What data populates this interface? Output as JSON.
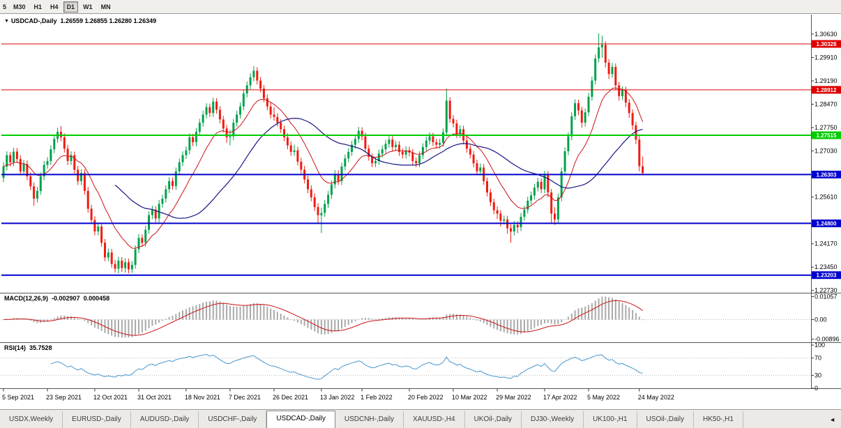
{
  "colors": {
    "bull": "#00a14b",
    "bear": "#ee1c12",
    "ma_fast": "#cc1111",
    "ma_slow": "#151580",
    "macd_hist": "#a9a9a9",
    "macd_signal": "#cc1111",
    "rsi_line": "#4696cf",
    "level_red": "#dd0000",
    "level_green": "#00cc00",
    "level_blue": "#0000cc",
    "pane_border": "#555555",
    "dotted_grid": "#b5b5b5",
    "axis_text": "#000000",
    "badge_text": "#ffffff"
  },
  "toolbar": {
    "timeframes": [
      {
        "label": "5",
        "partial": true
      },
      {
        "label": "M30"
      },
      {
        "label": "H1"
      },
      {
        "label": "H4"
      },
      {
        "label": "D1"
      },
      {
        "label": "W1"
      },
      {
        "label": "MN"
      }
    ],
    "active": "D1"
  },
  "chart": {
    "title_arrow": "▼",
    "symbol": "USDCAD-,Daily",
    "ohlc": "1.26559  1.26855  1.26280  1.26349"
  },
  "indicators": {
    "macd": {
      "label": "MACD(12,26,9)",
      "main_value": "-0.002907",
      "signal_value": "0.000458",
      "fast": 12,
      "slow": 26,
      "signal": 9,
      "axis_labels": [
        "0.01057",
        "0.00",
        "-0.00896"
      ],
      "axis_values": [
        0.01057,
        0,
        -0.00896
      ]
    },
    "rsi": {
      "label": "RSI(14)",
      "value": "35.7528",
      "period": 14,
      "axis_labels": [
        "100",
        "70",
        "30",
        "0"
      ],
      "axis_values": [
        100,
        70,
        30,
        0
      ],
      "level_lines": [
        70,
        30
      ]
    }
  },
  "chart_data": {
    "type": "candlestick",
    "symbol": "USDCAD",
    "timeframe": "Daily",
    "title": "USDCAD-,Daily",
    "last_ohlc": {
      "open": 1.26559,
      "high": 1.26855,
      "low": 1.2628,
      "close": 1.26349
    },
    "y_range": [
      1.2266,
      1.3123
    ],
    "y_axis_labels": [
      "1.30630",
      "1.29910",
      "1.29190",
      "1.28470",
      "1.27750",
      "1.27030",
      "1.25610",
      "1.24170",
      "1.23450",
      "1.22730"
    ],
    "levels": [
      {
        "price": 1.30328,
        "label": "1.30328",
        "color": "#dd0000",
        "width": 1
      },
      {
        "price": 1.28912,
        "label": "1.28912",
        "color": "#dd0000",
        "width": 1
      },
      {
        "price": 1.27515,
        "label": "1.27515",
        "color": "#00cc00",
        "width": 2
      },
      {
        "price": 1.26303,
        "label": "1.26303",
        "color": "#0000cc",
        "width": 2
      },
      {
        "price": 1.248,
        "label": "1.24800",
        "color": "#0000cc",
        "width": 2
      },
      {
        "price": 1.23203,
        "label": "1.23203",
        "color": "#0000cc",
        "width": 2
      }
    ],
    "moving_averages": [
      {
        "name": "fast",
        "method": "ema",
        "period": 13
      },
      {
        "name": "slow",
        "method": "sma",
        "period": 34
      }
    ],
    "x_axis_ticks": [
      {
        "label": "5 Sep 2021",
        "index": 0
      },
      {
        "label": "23 Sep 2021",
        "index": 13
      },
      {
        "label": "12 Oct 2021",
        "index": 27
      },
      {
        "label": "31 Oct 2021",
        "index": 40
      },
      {
        "label": "18 Nov 2021",
        "index": 54
      },
      {
        "label": "7 Dec 2021",
        "index": 67
      },
      {
        "label": "26 Dec 2021",
        "index": 80
      },
      {
        "label": "13 Jan 2022",
        "index": 94
      },
      {
        "label": "1 Feb 2022",
        "index": 106
      },
      {
        "label": "20 Feb 2022",
        "index": 120
      },
      {
        "label": "10 Mar 2022",
        "index": 133
      },
      {
        "label": "29 Mar 2022",
        "index": 146
      },
      {
        "label": "17 Apr 2022",
        "index": 160
      },
      {
        "label": "5 May 2022",
        "index": 173
      },
      {
        "label": "24 May 2022",
        "index": 188
      }
    ],
    "candles": [
      [
        1.262,
        1.2668,
        1.2607,
        1.2655
      ],
      [
        1.2655,
        1.2702,
        1.2643,
        1.269
      ],
      [
        1.269,
        1.27,
        1.2655,
        1.2668
      ],
      [
        1.2668,
        1.2713,
        1.2656,
        1.2701
      ],
      [
        1.2701,
        1.2712,
        1.2666,
        1.2678
      ],
      [
        1.2678,
        1.269,
        1.2628,
        1.264
      ],
      [
        1.264,
        1.2675,
        1.2628,
        1.2663
      ],
      [
        1.2663,
        1.2674,
        1.2613,
        1.2625
      ],
      [
        1.2625,
        1.2637,
        1.2582,
        1.2594
      ],
      [
        1.2594,
        1.2606,
        1.2534,
        1.2556
      ],
      [
        1.2556,
        1.2592,
        1.2544,
        1.258
      ],
      [
        1.258,
        1.2637,
        1.2568,
        1.2625
      ],
      [
        1.2625,
        1.2672,
        1.2613,
        1.266
      ],
      [
        1.266,
        1.2684,
        1.2648,
        1.2672
      ],
      [
        1.2672,
        1.272,
        1.266,
        1.2708
      ],
      [
        1.2708,
        1.2752,
        1.2696,
        1.274
      ],
      [
        1.274,
        1.2774,
        1.2728,
        1.2762
      ],
      [
        1.2762,
        1.278,
        1.2733,
        1.2745
      ],
      [
        1.2745,
        1.2757,
        1.2698,
        1.271
      ],
      [
        1.271,
        1.2722,
        1.266,
        1.2672
      ],
      [
        1.2672,
        1.2702,
        1.266,
        1.269
      ],
      [
        1.269,
        1.2701,
        1.2633,
        1.2645
      ],
      [
        1.2645,
        1.2657,
        1.2598,
        1.261
      ],
      [
        1.261,
        1.2647,
        1.2598,
        1.2635
      ],
      [
        1.2635,
        1.2646,
        1.2568,
        1.258
      ],
      [
        1.258,
        1.2592,
        1.2513,
        1.2525
      ],
      [
        1.2525,
        1.2537,
        1.2478,
        1.249
      ],
      [
        1.249,
        1.2502,
        1.2443,
        1.2455
      ],
      [
        1.2455,
        1.2482,
        1.2443,
        1.247
      ],
      [
        1.247,
        1.2481,
        1.2408,
        1.242
      ],
      [
        1.242,
        1.2432,
        1.2363,
        1.2375
      ],
      [
        1.2375,
        1.2402,
        1.2363,
        1.239
      ],
      [
        1.239,
        1.2401,
        1.2343,
        1.2355
      ],
      [
        1.2355,
        1.2367,
        1.2328,
        1.234
      ],
      [
        1.234,
        1.2377,
        1.2326,
        1.2365
      ],
      [
        1.2365,
        1.2376,
        1.233,
        1.2342
      ],
      [
        1.2342,
        1.2372,
        1.2328,
        1.236
      ],
      [
        1.236,
        1.2371,
        1.2326,
        1.2338
      ],
      [
        1.2338,
        1.2364,
        1.2327,
        1.2352
      ],
      [
        1.2352,
        1.2412,
        1.234,
        1.24
      ],
      [
        1.24,
        1.2447,
        1.2388,
        1.2435
      ],
      [
        1.2435,
        1.2446,
        1.2408,
        1.242
      ],
      [
        1.242,
        1.2472,
        1.2408,
        1.246
      ],
      [
        1.246,
        1.2517,
        1.2448,
        1.2505
      ],
      [
        1.2505,
        1.2534,
        1.2493,
        1.2522
      ],
      [
        1.2522,
        1.2533,
        1.2483,
        1.2495
      ],
      [
        1.2495,
        1.2552,
        1.2483,
        1.254
      ],
      [
        1.254,
        1.2568,
        1.2528,
        1.2556
      ],
      [
        1.2556,
        1.2597,
        1.2544,
        1.2585
      ],
      [
        1.2585,
        1.2622,
        1.2573,
        1.261
      ],
      [
        1.261,
        1.2621,
        1.2583,
        1.2595
      ],
      [
        1.2595,
        1.2652,
        1.2583,
        1.264
      ],
      [
        1.264,
        1.268,
        1.2628,
        1.2668
      ],
      [
        1.2668,
        1.2702,
        1.2656,
        1.269
      ],
      [
        1.269,
        1.2717,
        1.2678,
        1.2705
      ],
      [
        1.2705,
        1.2757,
        1.2693,
        1.2745
      ],
      [
        1.2745,
        1.2756,
        1.2718,
        1.273
      ],
      [
        1.273,
        1.2774,
        1.2718,
        1.2762
      ],
      [
        1.2762,
        1.2802,
        1.275,
        1.279
      ],
      [
        1.279,
        1.2827,
        1.2778,
        1.2815
      ],
      [
        1.2815,
        1.285,
        1.2803,
        1.2838
      ],
      [
        1.2838,
        1.2849,
        1.2808,
        1.282
      ],
      [
        1.282,
        1.2867,
        1.2808,
        1.2855
      ],
      [
        1.2855,
        1.2866,
        1.2818,
        1.283
      ],
      [
        1.283,
        1.2841,
        1.2788,
        1.28
      ],
      [
        1.28,
        1.2811,
        1.276,
        1.2772
      ],
      [
        1.2772,
        1.2783,
        1.2728,
        1.2745
      ],
      [
        1.2745,
        1.2768,
        1.272,
        1.2748
      ],
      [
        1.2748,
        1.2802,
        1.2736,
        1.279
      ],
      [
        1.279,
        1.2827,
        1.2778,
        1.2815
      ],
      [
        1.2815,
        1.2852,
        1.2803,
        1.284
      ],
      [
        1.284,
        1.2892,
        1.2828,
        1.288
      ],
      [
        1.288,
        1.2917,
        1.2868,
        1.2905
      ],
      [
        1.2905,
        1.2942,
        1.2893,
        1.293
      ],
      [
        1.293,
        1.2964,
        1.2918,
        1.295
      ],
      [
        1.295,
        1.2961,
        1.2908,
        1.292
      ],
      [
        1.292,
        1.2931,
        1.2883,
        1.2895
      ],
      [
        1.2895,
        1.2906,
        1.2853,
        1.2865
      ],
      [
        1.2865,
        1.2877,
        1.2828,
        1.284
      ],
      [
        1.284,
        1.2852,
        1.2803,
        1.2815
      ],
      [
        1.2815,
        1.2838,
        1.2796,
        1.2808
      ],
      [
        1.2808,
        1.2819,
        1.2778,
        1.279
      ],
      [
        1.279,
        1.2801,
        1.2758,
        1.277
      ],
      [
        1.277,
        1.2781,
        1.2733,
        1.2745
      ],
      [
        1.2745,
        1.2757,
        1.2708,
        1.272
      ],
      [
        1.272,
        1.2732,
        1.2688,
        1.27
      ],
      [
        1.27,
        1.2722,
        1.2688,
        1.2705
      ],
      [
        1.2705,
        1.2716,
        1.2658,
        1.267
      ],
      [
        1.267,
        1.2682,
        1.2633,
        1.2645
      ],
      [
        1.2645,
        1.2657,
        1.2603,
        1.2615
      ],
      [
        1.2615,
        1.2627,
        1.2573,
        1.2585
      ],
      [
        1.2585,
        1.2597,
        1.2548,
        1.256
      ],
      [
        1.256,
        1.2572,
        1.2518,
        1.253
      ],
      [
        1.253,
        1.2542,
        1.2478,
        1.2505
      ],
      [
        1.2505,
        1.2528,
        1.245,
        1.2512
      ],
      [
        1.2512,
        1.2552,
        1.25,
        1.254
      ],
      [
        1.254,
        1.258,
        1.2528,
        1.2568
      ],
      [
        1.2568,
        1.2612,
        1.2556,
        1.26
      ],
      [
        1.26,
        1.2644,
        1.2588,
        1.2632
      ],
      [
        1.2632,
        1.2643,
        1.2598,
        1.261
      ],
      [
        1.261,
        1.2667,
        1.2598,
        1.2655
      ],
      [
        1.2655,
        1.2692,
        1.2643,
        1.268
      ],
      [
        1.268,
        1.2712,
        1.2668,
        1.27
      ],
      [
        1.27,
        1.2734,
        1.2688,
        1.2722
      ],
      [
        1.2722,
        1.2752,
        1.271,
        1.274
      ],
      [
        1.274,
        1.2777,
        1.2728,
        1.2765
      ],
      [
        1.2765,
        1.2776,
        1.2736,
        1.2748
      ],
      [
        1.2748,
        1.2759,
        1.2698,
        1.271
      ],
      [
        1.271,
        1.2721,
        1.2673,
        1.2685
      ],
      [
        1.2685,
        1.2696,
        1.2653,
        1.2665
      ],
      [
        1.2665,
        1.2684,
        1.2653,
        1.2672
      ],
      [
        1.2672,
        1.2707,
        1.266,
        1.2695
      ],
      [
        1.2695,
        1.272,
        1.2683,
        1.2708
      ],
      [
        1.2708,
        1.2737,
        1.2696,
        1.2725
      ],
      [
        1.2725,
        1.275,
        1.2713,
        1.2738
      ],
      [
        1.2738,
        1.2749,
        1.2703,
        1.2715
      ],
      [
        1.2715,
        1.2734,
        1.2703,
        1.2722
      ],
      [
        1.2722,
        1.2733,
        1.2688,
        1.27
      ],
      [
        1.27,
        1.2711,
        1.268,
        1.2692
      ],
      [
        1.2692,
        1.2717,
        1.268,
        1.2705
      ],
      [
        1.2705,
        1.2716,
        1.2686,
        1.2698
      ],
      [
        1.2698,
        1.2709,
        1.266,
        1.2672
      ],
      [
        1.2672,
        1.2683,
        1.2653,
        1.2665
      ],
      [
        1.2665,
        1.2702,
        1.2653,
        1.269
      ],
      [
        1.269,
        1.2727,
        1.2678,
        1.2715
      ],
      [
        1.2715,
        1.2747,
        1.2703,
        1.2735
      ],
      [
        1.2735,
        1.276,
        1.2723,
        1.2748
      ],
      [
        1.2748,
        1.2759,
        1.2718,
        1.273
      ],
      [
        1.273,
        1.2741,
        1.271,
        1.2722
      ],
      [
        1.2722,
        1.274,
        1.271,
        1.2728
      ],
      [
        1.2728,
        1.2772,
        1.2716,
        1.276
      ],
      [
        1.276,
        1.2895,
        1.2748,
        1.2858
      ],
      [
        1.2858,
        1.2869,
        1.279,
        1.2802
      ],
      [
        1.2802,
        1.2813,
        1.2776,
        1.2788
      ],
      [
        1.2788,
        1.2799,
        1.2743,
        1.2755
      ],
      [
        1.2755,
        1.2782,
        1.2743,
        1.277
      ],
      [
        1.277,
        1.2781,
        1.2723,
        1.2735
      ],
      [
        1.2735,
        1.2746,
        1.2698,
        1.271
      ],
      [
        1.271,
        1.2721,
        1.268,
        1.2692
      ],
      [
        1.2692,
        1.2703,
        1.2653,
        1.2665
      ],
      [
        1.2665,
        1.2676,
        1.2628,
        1.264
      ],
      [
        1.264,
        1.2664,
        1.2628,
        1.2652
      ],
      [
        1.2652,
        1.2663,
        1.2598,
        1.261
      ],
      [
        1.261,
        1.2621,
        1.2563,
        1.2575
      ],
      [
        1.2575,
        1.2586,
        1.2533,
        1.2545
      ],
      [
        1.2545,
        1.2556,
        1.2508,
        1.252
      ],
      [
        1.252,
        1.2532,
        1.2493,
        1.251
      ],
      [
        1.251,
        1.2521,
        1.247,
        1.2488
      ],
      [
        1.2488,
        1.2504,
        1.2476,
        1.2492
      ],
      [
        1.2492,
        1.2503,
        1.2448,
        1.2465
      ],
      [
        1.2465,
        1.2477,
        1.242,
        1.2455
      ],
      [
        1.2455,
        1.2487,
        1.2443,
        1.2475
      ],
      [
        1.2475,
        1.2486,
        1.245,
        1.2468
      ],
      [
        1.2468,
        1.2512,
        1.2456,
        1.25
      ],
      [
        1.25,
        1.2534,
        1.2488,
        1.2522
      ],
      [
        1.2522,
        1.2562,
        1.251,
        1.255
      ],
      [
        1.255,
        1.2578,
        1.2538,
        1.2566
      ],
      [
        1.2566,
        1.2602,
        1.2554,
        1.259
      ],
      [
        1.259,
        1.262,
        1.2578,
        1.2608
      ],
      [
        1.2608,
        1.2619,
        1.2573,
        1.2585
      ],
      [
        1.2585,
        1.2642,
        1.2573,
        1.263
      ],
      [
        1.263,
        1.2641,
        1.256,
        1.2575
      ],
      [
        1.2575,
        1.2586,
        1.248,
        1.251
      ],
      [
        1.251,
        1.253,
        1.2475,
        1.2492
      ],
      [
        1.2492,
        1.2572,
        1.248,
        1.256
      ],
      [
        1.256,
        1.2652,
        1.2548,
        1.264
      ],
      [
        1.264,
        1.2714,
        1.2628,
        1.2702
      ],
      [
        1.2702,
        1.276,
        1.269,
        1.2748
      ],
      [
        1.2748,
        1.2822,
        1.2736,
        1.281
      ],
      [
        1.281,
        1.2862,
        1.2798,
        1.285
      ],
      [
        1.285,
        1.2861,
        1.2813,
        1.2828
      ],
      [
        1.2828,
        1.2839,
        1.2775,
        1.279
      ],
      [
        1.279,
        1.2834,
        1.2778,
        1.2822
      ],
      [
        1.2822,
        1.2882,
        1.281,
        1.287
      ],
      [
        1.287,
        1.2932,
        1.2858,
        1.292
      ],
      [
        1.292,
        1.3,
        1.2908,
        1.2988
      ],
      [
        1.2988,
        1.3065,
        1.2976,
        1.3022
      ],
      [
        1.3022,
        1.3058,
        1.299,
        1.303
      ],
      [
        1.303,
        1.3041,
        1.296,
        1.2975
      ],
      [
        1.2975,
        1.2986,
        1.2925,
        1.294
      ],
      [
        1.294,
        1.2974,
        1.2928,
        1.2962
      ],
      [
        1.2962,
        1.2973,
        1.289,
        1.2905
      ],
      [
        1.2905,
        1.2916,
        1.2858,
        1.2872
      ],
      [
        1.2872,
        1.2902,
        1.286,
        1.289
      ],
      [
        1.289,
        1.2901,
        1.2838,
        1.2852
      ],
      [
        1.2852,
        1.2863,
        1.2805,
        1.282
      ],
      [
        1.282,
        1.2831,
        1.2768,
        1.2782
      ],
      [
        1.2782,
        1.2793,
        1.2724,
        1.2738
      ],
      [
        1.2738,
        1.2749,
        1.264,
        1.2656
      ],
      [
        1.26559,
        1.26855,
        1.2628,
        1.26349
      ]
    ]
  },
  "tabbar": {
    "tabs": [
      {
        "label": "USDX,Weekly"
      },
      {
        "label": "EURUSD-,Daily"
      },
      {
        "label": "AUDUSD-,Daily"
      },
      {
        "label": "USDCHF-,Daily"
      },
      {
        "label": "USDCAD-,Daily"
      },
      {
        "label": "USDCNH-,Daily"
      },
      {
        "label": "XAUUSD-,H4"
      },
      {
        "label": "UKOil-,Daily"
      },
      {
        "label": "DJ30-,Weekly"
      },
      {
        "label": "UK100-,H1"
      },
      {
        "label": "USOil-,Daily"
      },
      {
        "label": "HK50-,H1"
      }
    ],
    "active": "USDCAD-,Daily",
    "scroll_left_arrow": "◄"
  }
}
